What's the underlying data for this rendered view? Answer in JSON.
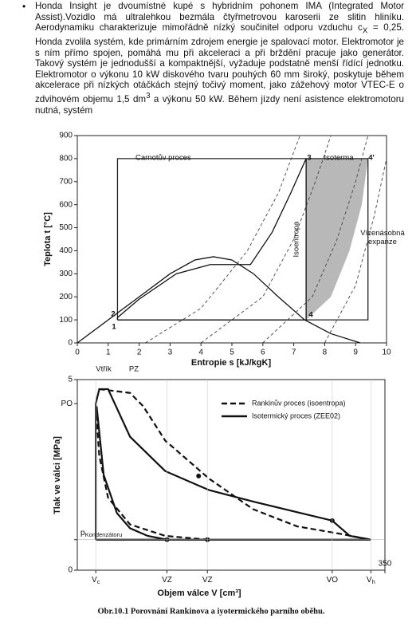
{
  "paragraph": [
    "Honda Insight je dvoumístné kupé s hybridním pohonem IMA (Integrated Motor Assist).Vozidlo má ultralehkou bezmála čtyřmetrovou karoserii ze slitin hliníku. Aerodynamiku charakterizuje mimořádně nízký součinitel odporu vzduchu c",
    "X",
    " = 0,25. Honda zvolila systém, kde primárním zdrojem energie je spalovací motor. Elektromotor je s ním přímo spojen, pomáhá mu při akceleraci a při brždění pracuje jako generátor. Takový systém je jednodušší a kompaktnější, vyžaduje podstatně menší řídící jednotku. Elektromotor o výkonu 10 kW diskového tvaru pouhých 60 mm široký, poskytuje během akcelerace při nízkých otáčkách stejný točivý moment, jako zážehový motor VTEC-E o zdvihovém objemu 1,5 dm",
    "3",
    " a výkonu 50 kW. Během jízdy není asistence elektromotoru nutná, systém"
  ],
  "chart_data": [
    {
      "type": "line",
      "x_label": "Entropie s [kJ/kgK]",
      "y_label": "Teplota t [°C]",
      "xlim": [
        0,
        10
      ],
      "ylim": [
        0,
        900
      ],
      "xticks": [
        0,
        1,
        2,
        3,
        4,
        5,
        6,
        7,
        8,
        9,
        10
      ],
      "yticks": [
        0,
        100,
        200,
        300,
        400,
        500,
        600,
        700,
        800,
        900
      ],
      "annotations": [
        "Carnotův proces",
        "Isoterma",
        "Isoentropa",
        [
          "Vícenásobná",
          "expanze"
        ],
        "1",
        "2",
        "3",
        "4",
        "4'"
      ],
      "series": [
        {
          "color": "#9a9a9a",
          "fill": true,
          "x": [
            7.4,
            9.4,
            9.2,
            8.8,
            8.2,
            7.4
          ],
          "values": [
            800,
            800,
            600,
            400,
            200,
            100
          ]
        },
        {
          "color": "#222222",
          "x": [
            1.3,
            9.4,
            9.4,
            1.3,
            1.3
          ],
          "values": [
            100,
            100,
            800,
            800,
            100
          ]
        },
        {
          "color": "#111111",
          "x": [
            0,
            1,
            2,
            3,
            3.8,
            4.4,
            5,
            5.7,
            6.5,
            7.35,
            8.2,
            9.15
          ],
          "values": [
            0,
            100,
            200,
            300,
            360,
            374,
            360,
            300,
            200,
            100,
            40,
            0
          ]
        },
        {
          "color": "#111111",
          "x": [
            1.3,
            1.3,
            2,
            3.2,
            4.3,
            5.6,
            6.3,
            6.9,
            7.4,
            7.4,
            1.3
          ],
          "values": [
            100,
            110,
            190,
            300,
            340,
            340,
            480,
            650,
            800,
            100,
            100
          ]
        },
        {
          "color": "#444444",
          "dash": true,
          "x": [
            2.2,
            4,
            5.5,
            6.5,
            7.2
          ],
          "values": [
            0,
            150,
            400,
            650,
            900
          ]
        },
        {
          "color": "#444444",
          "dash": true,
          "x": [
            4,
            6,
            7,
            7.7,
            8.2
          ],
          "values": [
            0,
            200,
            450,
            700,
            900
          ]
        },
        {
          "color": "#444444",
          "dash": true,
          "x": [
            6,
            7.6,
            8.4,
            9,
            9.4
          ],
          "values": [
            0,
            200,
            450,
            700,
            900
          ]
        },
        {
          "color": "#444444",
          "dash": true,
          "x": [
            8,
            9,
            9.6,
            10
          ],
          "values": [
            0,
            250,
            550,
            800
          ]
        }
      ]
    },
    {
      "type": "line",
      "x_label": "Objem válce V [cm³]",
      "y_label": "Tlak ve válci [MPa]",
      "xlim": [
        0,
        350
      ],
      "ylim": [
        0,
        5
      ],
      "xticks": [
        {
          "value": 21,
          "label": "V",
          "sub": "c"
        },
        {
          "value": 102,
          "label": "VZ"
        },
        {
          "value": 148,
          "label": "VZ"
        },
        {
          "value": 290,
          "label": "VO"
        },
        {
          "value": 334,
          "label": "V",
          "sub": "h"
        },
        350
      ],
      "yticks": [
        0,
        {
          "value": 0.8,
          "label": "p",
          "sub": "Kondenzátoru"
        },
        {
          "value": 4.37,
          "label": "PO"
        },
        5
      ],
      "annotations": [
        "Vtřík",
        "PZ"
      ],
      "legend": "upper right",
      "series": [
        {
          "name": "Rankinův proces (isoentropa)",
          "color": "#111111",
          "dash": true,
          "x": [
            25,
            60,
            75,
            100,
            150,
            200,
            250,
            300,
            334
          ],
          "values": [
            4.75,
            4.65,
            4.3,
            3.4,
            2.4,
            1.6,
            1.15,
            0.95,
            0.8
          ]
        },
        {
          "name": "Isotermický proces (ZEE02)",
          "color": "#111111",
          "x": [
            21,
            21,
            25,
            35,
            60,
            100,
            150,
            200,
            290,
            300,
            310,
            334,
            21
          ],
          "values": [
            0.8,
            4.37,
            4.75,
            4.75,
            3.5,
            2.6,
            2.1,
            1.8,
            1.3,
            1.1,
            0.9,
            0.8,
            0.8
          ]
        },
        {
          "color": "#111111",
          "x": [
            22,
            30,
            45,
            60,
            80,
            102
          ],
          "values": [
            4.3,
            2.5,
            1.5,
            1.1,
            0.9,
            0.8
          ]
        },
        {
          "color": "#111111",
          "dash": true,
          "x": [
            21,
            25,
            35,
            60,
            100,
            148
          ],
          "values": [
            4.3,
            3.0,
            1.9,
            1.2,
            0.9,
            0.8
          ]
        },
        {
          "color": "#111111",
          "markers": true,
          "x": [
            102,
            148,
            138,
            290
          ],
          "values": [
            0.8,
            0.8,
            2.47,
            1.3
          ]
        }
      ]
    }
  ],
  "caption": "Obr.10.1  Porovnání Rankinova a iyotermického parního oběhu."
}
